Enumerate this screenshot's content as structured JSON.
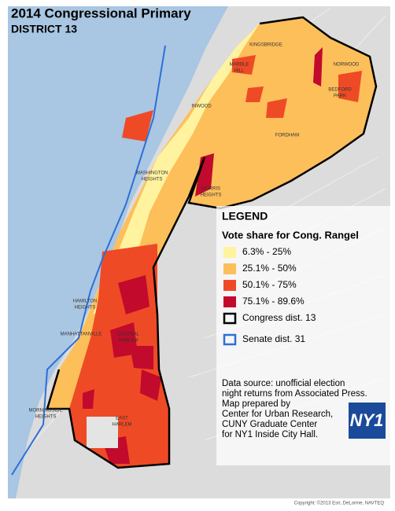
{
  "title": "2014 Congressional Primary",
  "subtitle": "DISTRICT 13",
  "places": [
    {
      "lines": [
        "KINGSBRIDGE"
      ]
    },
    {
      "lines": [
        "MARBLE",
        "HILL"
      ]
    },
    {
      "lines": [
        "NORWOOD"
      ]
    },
    {
      "lines": [
        "INWOOD"
      ]
    },
    {
      "lines": [
        "BEDFORD",
        "PARK"
      ]
    },
    {
      "lines": [
        "FORDHAM"
      ]
    },
    {
      "lines": [
        "WASHINGTON",
        "HEIGHTS"
      ]
    },
    {
      "lines": [
        "MORRIS",
        "HEIGHTS"
      ]
    },
    {
      "lines": [
        "HAMILTON",
        "HEIGHTS"
      ]
    },
    {
      "lines": [
        "MANHATTANVILLE"
      ]
    },
    {
      "lines": [
        "CENTRAL",
        "HARLEM"
      ]
    },
    {
      "lines": [
        "MORNINGSIDE",
        "HEIGHTS"
      ]
    },
    {
      "lines": [
        "EAST",
        "HARLEM"
      ]
    }
  ],
  "legend": {
    "title": "LEGEND",
    "heading": "Vote share for Cong. Rangel",
    "classes": [
      {
        "label": "6.3% - 25%",
        "color": "#fff3a0"
      },
      {
        "label": "25.1% - 50%",
        "color": "#fdbf5a"
      },
      {
        "label": "50.1% - 75%",
        "color": "#ef4a26"
      },
      {
        "label": "75.1% - 89.6%",
        "color": "#c20a2c"
      }
    ],
    "boundaries": [
      {
        "label": "Congress dist. 13",
        "color": "#000000"
      },
      {
        "label": "Senate dist. 31",
        "color": "#2d6fd8"
      }
    ]
  },
  "source": [
    "Data source: unofficial election",
    "night returns from Associated Press.",
    "Map prepared by",
    "Center for Urban Research,",
    "CUNY Graduate Center",
    "for NY1 Inside City Hall."
  ],
  "logo": "NY1",
  "copyright": "Copyright: ©2013 Esri, DeLorme, NAVTEQ"
}
